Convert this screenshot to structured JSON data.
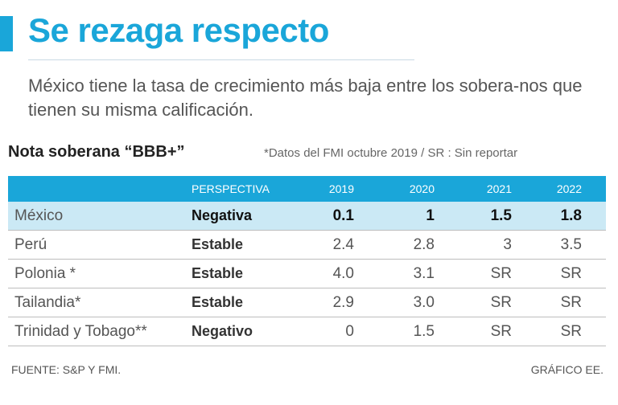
{
  "title": "Se rezaga respecto",
  "subtitle": "México tiene la tasa de crecimiento más baja entre los sobera-nos que tienen su misma calificación.",
  "table_heading": "Nota soberana “BBB+”",
  "note": "*Datos del FMI octubre 2019 / SR : Sin reportar",
  "source": "FUENTE: S&P Y FMI.",
  "credit": "GRÁFICO EE.",
  "colors": {
    "accent": "#1aa6d9",
    "highlight_row": "#cbe9f5"
  },
  "chart_data": {
    "type": "table",
    "columns": [
      "",
      "PERSPECTIVA",
      "2019",
      "2020",
      "2021",
      "2022"
    ],
    "rows": [
      {
        "country": "México",
        "outlook": "Negativa",
        "values": [
          "0.1",
          "1",
          "1.5",
          "1.8"
        ],
        "highlight": true
      },
      {
        "country": "Perú",
        "outlook": "Estable",
        "values": [
          "2.4",
          "2.8",
          "3",
          "3.5"
        ]
      },
      {
        "country": "Polonia *",
        "outlook": "Estable",
        "values": [
          "4.0",
          "3.1",
          "SR",
          "SR"
        ]
      },
      {
        "country": "Tailandia*",
        "outlook": "Estable",
        "values": [
          "2.9",
          "3.0",
          "SR",
          "SR"
        ]
      },
      {
        "country": "Trinidad y Tobago**",
        "outlook": "Negativo",
        "values": [
          "0",
          "1.5",
          "SR",
          "SR"
        ]
      }
    ]
  }
}
